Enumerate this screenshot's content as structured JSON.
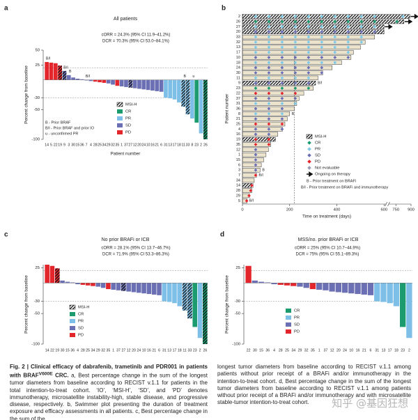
{
  "chart_data": [
    {
      "panel": "a",
      "type": "bar",
      "title": "All patients",
      "stats": [
        "cORR = 24.3% (95% CI 11.9–41.2%)",
        "DCR = 70.3% (95% CI 53.0–84.1%)"
      ],
      "ylabel": "Percent change from baseline",
      "xlabel": "Patient number",
      "categories": [
        "14",
        "5",
        "22",
        "19",
        "9",
        "3",
        "30",
        "15",
        "36",
        "7",
        "4",
        "28",
        "25",
        "34",
        "29",
        "32",
        "35",
        "1",
        "37",
        "27",
        "12",
        "20",
        "24",
        "10",
        "16",
        "21",
        "6",
        "31",
        "13",
        "17",
        "18",
        "11",
        "33",
        "8",
        "23",
        "2",
        "26"
      ],
      "values": [
        30,
        29,
        28,
        24,
        15,
        8,
        4,
        2,
        1,
        -1,
        -2,
        -3,
        -4,
        -5,
        -6,
        -8,
        -10,
        -11,
        -12,
        -13,
        -14,
        -15,
        -16,
        -17,
        -18,
        -19,
        -20,
        -30,
        -31,
        -33,
        -38,
        -45,
        -58,
        -65,
        -72,
        -90,
        -100
      ],
      "colors": [
        "#e3262c",
        "#e3262c",
        "#e3262c",
        "#e3262c",
        "#6b6fb3",
        "#6b6fb3",
        "#6b6fb3",
        "#6b6fb3",
        "#6b6fb3",
        "#6b6fb3",
        "#6b6fb3",
        "#e3262c",
        "#e3262c",
        "#e3262c",
        "#6b6fb3",
        "#6b6fb3",
        "#e3262c",
        "#6b6fb3",
        "#6b6fb3",
        "#6b6fb3",
        "#6b6fb3",
        "#6b6fb3",
        "#6b6fb3",
        "#6b6fb3",
        "#6b6fb3",
        "#6b6fb3",
        "#6b6fb3",
        "#7ebfe8",
        "#7ebfe8",
        "#7ebfe8",
        "#7ebfe8",
        "#7ebfe8",
        "#7ebfe8",
        "#7ebfe8",
        "#1b9b6e",
        "#7ebfe8",
        "#1b9b6e"
      ],
      "hatched": [
        false,
        false,
        false,
        true,
        true,
        false,
        false,
        false,
        false,
        false,
        false,
        false,
        false,
        false,
        false,
        false,
        false,
        false,
        false,
        true,
        false,
        false,
        false,
        false,
        false,
        false,
        false,
        false,
        false,
        false,
        false,
        true,
        true,
        false,
        false,
        false,
        true
      ],
      "notes": [
        "B/I",
        null,
        null,
        null,
        "B/I",
        "B",
        null,
        null,
        null,
        "B/I",
        null,
        null,
        null,
        null,
        null,
        null,
        null,
        null,
        null,
        null,
        null,
        null,
        null,
        null,
        null,
        null,
        null,
        null,
        null,
        null,
        null,
        "B",
        null,
        "u",
        null,
        null,
        null
      ],
      "ylim": [
        -100,
        50
      ],
      "yticks": [
        50,
        25,
        -30,
        -50,
        -100
      ],
      "ref_lines": [
        20,
        -30
      ],
      "legend": [
        {
          "name": "MSI-H",
          "hatched": true
        },
        {
          "name": "CR",
          "color": "#1b9b6e"
        },
        {
          "name": "PR",
          "color": "#7ebfe8"
        },
        {
          "name": "SD",
          "color": "#6b6fb3"
        },
        {
          "name": "PD",
          "color": "#e3262c"
        }
      ],
      "legend_notes": [
        "B - Prior BRAF",
        "B/I - Prior BRAF and prior IO",
        "u - unconfirmed PR"
      ]
    },
    {
      "panel": "b",
      "type": "swimmer",
      "ylabel": "Patient number",
      "xlabel": "Time on treatment (days)",
      "patients": [
        "2",
        "26",
        "27",
        "20",
        "33",
        "32",
        "13",
        "17",
        "10",
        "18",
        "24",
        "30",
        "11",
        "9",
        "23",
        "22",
        "37",
        "31",
        "36",
        "8",
        "21",
        "25",
        "4",
        "16",
        "19",
        "35",
        "12",
        "1",
        "15",
        "6",
        "3",
        "7",
        "34",
        "14",
        "28",
        "29",
        "5"
      ],
      "durations": [
        890,
        830,
        600,
        600,
        560,
        520,
        500,
        470,
        460,
        420,
        380,
        340,
        320,
        310,
        300,
        260,
        240,
        230,
        220,
        200,
        190,
        180,
        170,
        150,
        140,
        120,
        110,
        100,
        90,
        80,
        75,
        60,
        50,
        45,
        40,
        30,
        20
      ],
      "responses": [
        "PR",
        "CR",
        "PR",
        "SD",
        "PR",
        "PR",
        "PR",
        "PR",
        "SD",
        "PR",
        "SD",
        "SD",
        "PR",
        "SD",
        "CR",
        "PD",
        "SD",
        "PR",
        "SD",
        "PR",
        "SD",
        "PD",
        "SD",
        "SD",
        "PD",
        "PD",
        "SD",
        "SD",
        "SD",
        "SD",
        "SD",
        "PD",
        "Not evaluable",
        "PD",
        "PD",
        "PD",
        "PD"
      ],
      "assessments": [
        [
          56,
          112,
          168,
          224,
          280,
          336,
          392,
          448,
          504,
          560,
          820
        ],
        [
          56,
          112,
          168,
          224,
          280,
          336,
          392,
          448,
          504,
          560,
          760
        ],
        [
          56,
          112,
          168,
          224,
          280,
          336,
          392,
          448,
          504,
          560
        ],
        [
          56,
          112,
          168,
          224,
          280,
          336,
          392,
          448,
          504,
          560
        ],
        [
          56,
          112,
          168,
          224,
          280,
          336,
          392,
          448,
          504
        ],
        [
          56,
          112,
          168,
          224,
          280,
          336,
          392,
          448,
          504
        ],
        [
          56,
          112,
          168,
          224,
          280,
          336,
          392,
          448
        ],
        [
          56,
          112,
          168,
          224,
          280,
          336,
          392,
          448
        ],
        [
          56,
          112,
          168,
          224,
          280,
          336,
          392,
          448
        ],
        [
          56,
          112,
          168,
          224,
          280,
          336,
          392
        ],
        [
          56,
          112,
          168,
          224,
          280,
          336
        ],
        [
          56,
          112,
          168,
          224,
          280,
          336
        ],
        [
          56,
          112,
          168,
          224,
          280
        ],
        [
          56,
          112,
          168,
          224,
          280
        ],
        [
          56,
          112,
          168,
          224,
          280
        ],
        [
          56,
          112,
          168,
          224
        ],
        [
          56,
          112,
          168,
          224
        ],
        [
          56,
          112,
          168,
          224
        ],
        [
          56,
          112,
          168
        ],
        [
          56,
          112,
          168
        ],
        [
          56,
          112,
          168
        ],
        [
          56,
          112,
          168
        ],
        [
          56,
          112,
          168
        ],
        [
          56,
          112
        ],
        [
          56,
          112
        ],
        [
          56,
          112
        ],
        [
          56
        ],
        [
          56
        ],
        [
          56
        ],
        [
          56
        ],
        [
          56
        ],
        [
          56
        ],
        [],
        [
          40
        ],
        [
          35
        ],
        [
          28
        ],
        [
          18
        ]
      ],
      "hatched": [
        true,
        true,
        true,
        true,
        false,
        false,
        false,
        false,
        false,
        false,
        false,
        false,
        false,
        true,
        false,
        false,
        false,
        false,
        false,
        false,
        false,
        false,
        false,
        false,
        true,
        false,
        false,
        false,
        false,
        false,
        false,
        false,
        false,
        true,
        false,
        false,
        false
      ],
      "ongoing": [
        true,
        true,
        true,
        false,
        false,
        false,
        false,
        false,
        false,
        false,
        false,
        false,
        false,
        false,
        false,
        false,
        false,
        false,
        false,
        false,
        false,
        false,
        false,
        false,
        false,
        false,
        false,
        false,
        false,
        false,
        false,
        false,
        false,
        false,
        false,
        false,
        false
      ],
      "notes": [
        null,
        null,
        null,
        null,
        null,
        null,
        null,
        null,
        null,
        null,
        null,
        null,
        null,
        "B/I",
        null,
        null,
        null,
        null,
        null,
        "B",
        null,
        null,
        null,
        null,
        null,
        null,
        null,
        null,
        null,
        null,
        "B",
        "B/I",
        null,
        null,
        null,
        null,
        "B/I"
      ],
      "xlim": [
        0,
        900
      ],
      "axis_break": [
        600,
        700
      ],
      "xticks": [
        0,
        200,
        400,
        600,
        750,
        900
      ],
      "vline": 220,
      "legend": [
        {
          "name": "MSI-H",
          "hatched": true
        },
        {
          "name": "CR",
          "color": "#1b9b6e"
        },
        {
          "name": "PR",
          "color": "#7ec8e3"
        },
        {
          "name": "SD",
          "color": "#6b6fb3"
        },
        {
          "name": "PD",
          "color": "#e3262c"
        },
        {
          "name": "Not evaluable",
          "color": "#9a9ab0"
        },
        {
          "name": "Ongoing on therapy",
          "arrow": true
        }
      ],
      "legend_notes": [
        "B - Prior treatment on BRAFi",
        "B/I - Prior treatment on BRAFi and immunotherapy"
      ]
    },
    {
      "panel": "c",
      "type": "bar",
      "title": "No prior BRAFi or ICB",
      "stats": [
        "cORR = 28.1% (95% CI 13.7–46.7%)",
        "DCR = 71.9% (95% CI 53.3–86.3%)"
      ],
      "ylabel": "Percent change from baseline",
      "categories": [
        "14",
        "22",
        "19",
        "30",
        "15",
        "36",
        "4",
        "28",
        "25",
        "34",
        "29",
        "32",
        "35",
        "1",
        "37",
        "27",
        "12",
        "20",
        "24",
        "10",
        "16",
        "21",
        "6",
        "31",
        "13",
        "17",
        "18",
        "11",
        "33",
        "23",
        "2",
        "26"
      ],
      "values": [
        30,
        28,
        24,
        4,
        2,
        1,
        -2,
        -3,
        -4,
        -5,
        -6,
        -8,
        -10,
        -11,
        -12,
        -13,
        -14,
        -15,
        -16,
        -17,
        -18,
        -19,
        -20,
        -30,
        -31,
        -33,
        -38,
        -45,
        -58,
        -72,
        -90,
        -100
      ],
      "colors": [
        "#e3262c",
        "#e3262c",
        "#e3262c",
        "#6b6fb3",
        "#6b6fb3",
        "#6b6fb3",
        "#6b6fb3",
        "#e3262c",
        "#e3262c",
        "#e3262c",
        "#6b6fb3",
        "#6b6fb3",
        "#e3262c",
        "#6b6fb3",
        "#6b6fb3",
        "#6b6fb3",
        "#6b6fb3",
        "#6b6fb3",
        "#6b6fb3",
        "#6b6fb3",
        "#6b6fb3",
        "#6b6fb3",
        "#6b6fb3",
        "#7ebfe8",
        "#7ebfe8",
        "#7ebfe8",
        "#7ebfe8",
        "#7ebfe8",
        "#7ebfe8",
        "#1b9b6e",
        "#7ebfe8",
        "#1b9b6e"
      ],
      "hatched": [
        false,
        false,
        true,
        false,
        false,
        false,
        false,
        false,
        false,
        false,
        false,
        false,
        false,
        false,
        false,
        true,
        false,
        false,
        false,
        false,
        false,
        false,
        false,
        false,
        false,
        false,
        false,
        true,
        true,
        false,
        false,
        true
      ],
      "ylim": [
        -100,
        30
      ],
      "yticks": [
        25,
        -30,
        -50,
        -100
      ],
      "ref_lines": [
        20,
        -30
      ],
      "legend": [
        {
          "name": "MSI-H",
          "hatched": true
        },
        {
          "name": "CR",
          "color": "#1b9b6e"
        },
        {
          "name": "PR",
          "color": "#7ebfe8"
        },
        {
          "name": "SD",
          "color": "#6b6fb3"
        },
        {
          "name": "PD",
          "color": "#e3262c"
        }
      ]
    },
    {
      "panel": "d",
      "type": "bar",
      "title": "MSS/no. prior BRAFi or ICB",
      "stats": [
        "cORR = 25% (95% CI 10.7–44.9%)",
        "DCR = 75% (95% CI 55.1–89.3%)"
      ],
      "ylabel": "Percent change from baseline",
      "categories": [
        "22",
        "30",
        "15",
        "36",
        "4",
        "28",
        "25",
        "34",
        "29",
        "32",
        "35",
        "1",
        "37",
        "12",
        "20",
        "24",
        "10",
        "16",
        "21",
        "6",
        "31",
        "13",
        "17",
        "18",
        "23",
        "2"
      ],
      "values": [
        28,
        4,
        2,
        1,
        -2,
        -3,
        -4,
        -5,
        -6,
        -8,
        -10,
        -11,
        -12,
        -14,
        -15,
        -16,
        -17,
        -18,
        -19,
        -20,
        -30,
        -31,
        -33,
        -38,
        -72,
        -90
      ],
      "colors": [
        "#e3262c",
        "#6b6fb3",
        "#6b6fb3",
        "#6b6fb3",
        "#6b6fb3",
        "#e3262c",
        "#e3262c",
        "#e3262c",
        "#6b6fb3",
        "#6b6fb3",
        "#e3262c",
        "#6b6fb3",
        "#6b6fb3",
        "#6b6fb3",
        "#6b6fb3",
        "#6b6fb3",
        "#6b6fb3",
        "#6b6fb3",
        "#6b6fb3",
        "#6b6fb3",
        "#7ebfe8",
        "#7ebfe8",
        "#7ebfe8",
        "#7ebfe8",
        "#1b9b6e",
        "#7ebfe8"
      ],
      "ylim": [
        -100,
        30
      ],
      "yticks": [
        25,
        -30,
        -50,
        -100
      ],
      "ref_lines": [
        20,
        -30
      ],
      "legend": [
        {
          "name": "CR",
          "color": "#1b9b6e"
        },
        {
          "name": "PR",
          "color": "#7ebfe8"
        },
        {
          "name": "SD",
          "color": "#6b6fb3"
        },
        {
          "name": "PD",
          "color": "#e3262c"
        }
      ]
    }
  ],
  "caption": {
    "title": "Fig. 2 | Clinical efficacy of dabrafenib, trametinib and PDR001 in patients with BRAF",
    "title_sup": "V600E",
    "title_end": " CRC.",
    "left": " a, Best percentage change in the sum of the longest tumor diameters from baseline according to RECIST v.1.1 for patients in the total intention-to-treat cohort. ‘IO’, ‘MSI-H’, ‘SD’, and ‘PD’ denotes immunotherapy, microsatellite instability-high, stable disease, and progressive disease, respectively. b, Swimmer plot presenting the duration of treatment exposure and efficacy assessments in all patients. c, Best percentage change in the sum of the",
    "right": "longest tumor diameters from baseline according to RECIST v.1.1 among patients without prior receipt of a BRAFi and/or immunotherapy in the intention-to-treat cohort. d, Best percentage change in the sum of the longest tumor diameters from baseline according to RECIST v.1.1 among patients without prior receipt of a BRAFi and/or immunotherapy and with microsatellite stable-tumor intention-to-treat cohort."
  },
  "watermark": "知乎 @基因狂想"
}
